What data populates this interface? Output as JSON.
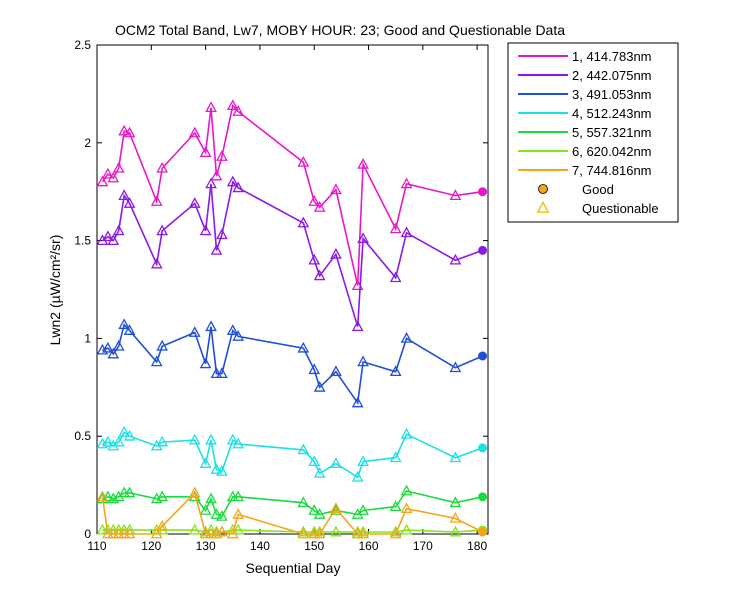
{
  "chart_data": {
    "type": "line",
    "title": "OCM2 Total Band, Lw7, MOBY HOUR: 23;  Good and Questionable Data",
    "xlabel": "Sequential Day",
    "ylabel": "Lwn2 (µW/cm²/sr)",
    "xlim": [
      110,
      182
    ],
    "ylim": [
      0,
      2.5
    ],
    "xticks": [
      "110",
      "120",
      "130",
      "140",
      "150",
      "160",
      "170",
      "180"
    ],
    "yticks": [
      "0",
      "0.5",
      "1",
      "1.5",
      "2",
      "2.5"
    ],
    "grid": false,
    "legend_position": "outside-right",
    "x": [
      111,
      112,
      113,
      114,
      115,
      116,
      121,
      122,
      128,
      130,
      131,
      132,
      133,
      135,
      136,
      148,
      150,
      151,
      154,
      158,
      159,
      165,
      167,
      176,
      181
    ],
    "series": [
      {
        "name": "1, 414.783nm",
        "color": "#e619c8",
        "values": [
          1.8,
          1.84,
          1.82,
          1.87,
          2.06,
          2.05,
          1.7,
          1.87,
          2.05,
          1.95,
          2.18,
          1.83,
          1.93,
          2.19,
          2.16,
          1.9,
          1.7,
          1.67,
          1.76,
          1.27,
          1.89,
          1.56,
          1.79,
          1.73,
          1.75
        ]
      },
      {
        "name": "2, 442.075nm",
        "color": "#8c19e6",
        "values": [
          1.5,
          1.52,
          1.5,
          1.55,
          1.73,
          1.69,
          1.38,
          1.55,
          1.69,
          1.55,
          1.79,
          1.45,
          1.53,
          1.8,
          1.77,
          1.59,
          1.4,
          1.32,
          1.43,
          1.06,
          1.51,
          1.31,
          1.54,
          1.4,
          1.45
        ]
      },
      {
        "name": "3, 491.053nm",
        "color": "#1f4fd6",
        "values": [
          0.94,
          0.95,
          0.92,
          0.96,
          1.07,
          1.04,
          0.88,
          0.96,
          1.03,
          0.87,
          1.06,
          0.82,
          0.82,
          1.04,
          1.01,
          0.95,
          0.84,
          0.75,
          0.83,
          0.67,
          0.88,
          0.83,
          1.0,
          0.85,
          0.91
        ]
      },
      {
        "name": "4, 512.243nm",
        "color": "#19e1e6",
        "values": [
          0.46,
          0.47,
          0.45,
          0.47,
          0.52,
          0.5,
          0.45,
          0.47,
          0.48,
          0.36,
          0.48,
          0.33,
          0.32,
          0.48,
          0.46,
          0.43,
          0.37,
          0.31,
          0.36,
          0.29,
          0.37,
          0.39,
          0.51,
          0.39,
          0.44
        ]
      },
      {
        "name": "5, 557.321nm",
        "color": "#19dc3c",
        "values": [
          0.18,
          0.19,
          0.18,
          0.19,
          0.21,
          0.21,
          0.18,
          0.19,
          0.19,
          0.12,
          0.18,
          0.1,
          0.09,
          0.19,
          0.19,
          0.16,
          0.12,
          0.1,
          0.12,
          0.1,
          0.12,
          0.14,
          0.22,
          0.16,
          0.19
        ]
      },
      {
        "name": "6, 620.042nm",
        "color": "#82e619",
        "values": [
          0.02,
          0.02,
          0.02,
          0.02,
          0.02,
          0.02,
          0.02,
          0.02,
          0.02,
          0.01,
          0.02,
          0.01,
          0.01,
          0.02,
          0.02,
          0.01,
          0.01,
          0.01,
          0.01,
          0.01,
          0.01,
          0.01,
          0.02,
          0.01,
          0.02
        ]
      },
      {
        "name": "7, 744.816nm",
        "color": "#f5a51a",
        "values": [
          0.19,
          0.0,
          0.0,
          0.0,
          0.0,
          0.0,
          0.0,
          0.04,
          0.21,
          0.0,
          0.0,
          0.0,
          0.01,
          0.0,
          0.1,
          0.0,
          0.0,
          0.0,
          0.13,
          0.0,
          0.0,
          0.0,
          0.13,
          0.08,
          0.01
        ]
      }
    ],
    "legend": {
      "good_label": "Good",
      "questionable_label": "Questionable",
      "good_color": "#f5a51a",
      "questionable_color": "#f5c21a"
    },
    "point_quality": "all questionable except final day 181 (good)"
  }
}
